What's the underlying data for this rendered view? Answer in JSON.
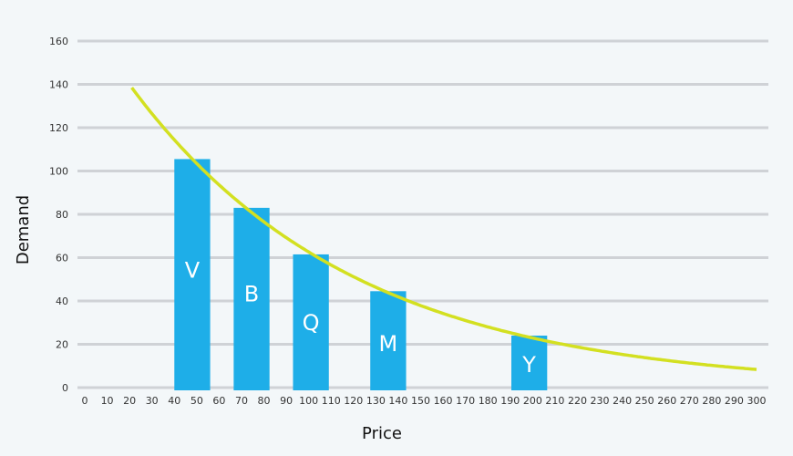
{
  "chart_data": {
    "type": "bar",
    "title": "",
    "xlabel": "Price",
    "ylabel": "Demand",
    "xlim": [
      0,
      300
    ],
    "ylim": [
      0,
      160
    ],
    "x_ticks": [
      0,
      10,
      20,
      30,
      40,
      50,
      60,
      70,
      80,
      90,
      100,
      110,
      120,
      130,
      140,
      150,
      160,
      170,
      180,
      190,
      200,
      210,
      220,
      230,
      240,
      250,
      260,
      270,
      280,
      290,
      300
    ],
    "y_ticks": [
      0,
      20,
      40,
      60,
      80,
      100,
      120,
      140,
      160
    ],
    "grid": "horizontal",
    "bars": [
      {
        "label": "V",
        "x": 48,
        "value": 105.5
      },
      {
        "label": "B",
        "x": 74.5,
        "value": 83
      },
      {
        "label": "Q",
        "x": 101,
        "value": 61.5
      },
      {
        "label": "M",
        "x": 135.5,
        "value": 44.5
      },
      {
        "label": "Y",
        "x": 198.5,
        "value": 24
      }
    ],
    "bar_width_units": 16,
    "curve": {
      "name": "demand curve",
      "type": "line",
      "formula": "171 * exp(-0.01005 * x)",
      "x_range": [
        21,
        300
      ],
      "points": [
        [
          21,
          138.5
        ],
        [
          40,
          114.6
        ],
        [
          60,
          93.6
        ],
        [
          80,
          76.5
        ],
        [
          100,
          62.5
        ],
        [
          120,
          51.1
        ],
        [
          140,
          41.7
        ],
        [
          160,
          34.1
        ],
        [
          180,
          27.9
        ],
        [
          200,
          22.8
        ],
        [
          220,
          18.6
        ],
        [
          240,
          15.2
        ],
        [
          260,
          12.4
        ],
        [
          280,
          10.2
        ],
        [
          300,
          8.4
        ]
      ]
    },
    "colors": {
      "bar": "#1eaee8",
      "curve": "#d3e021",
      "grid": "#cfd2d6",
      "background": "#f3f7f9"
    }
  }
}
